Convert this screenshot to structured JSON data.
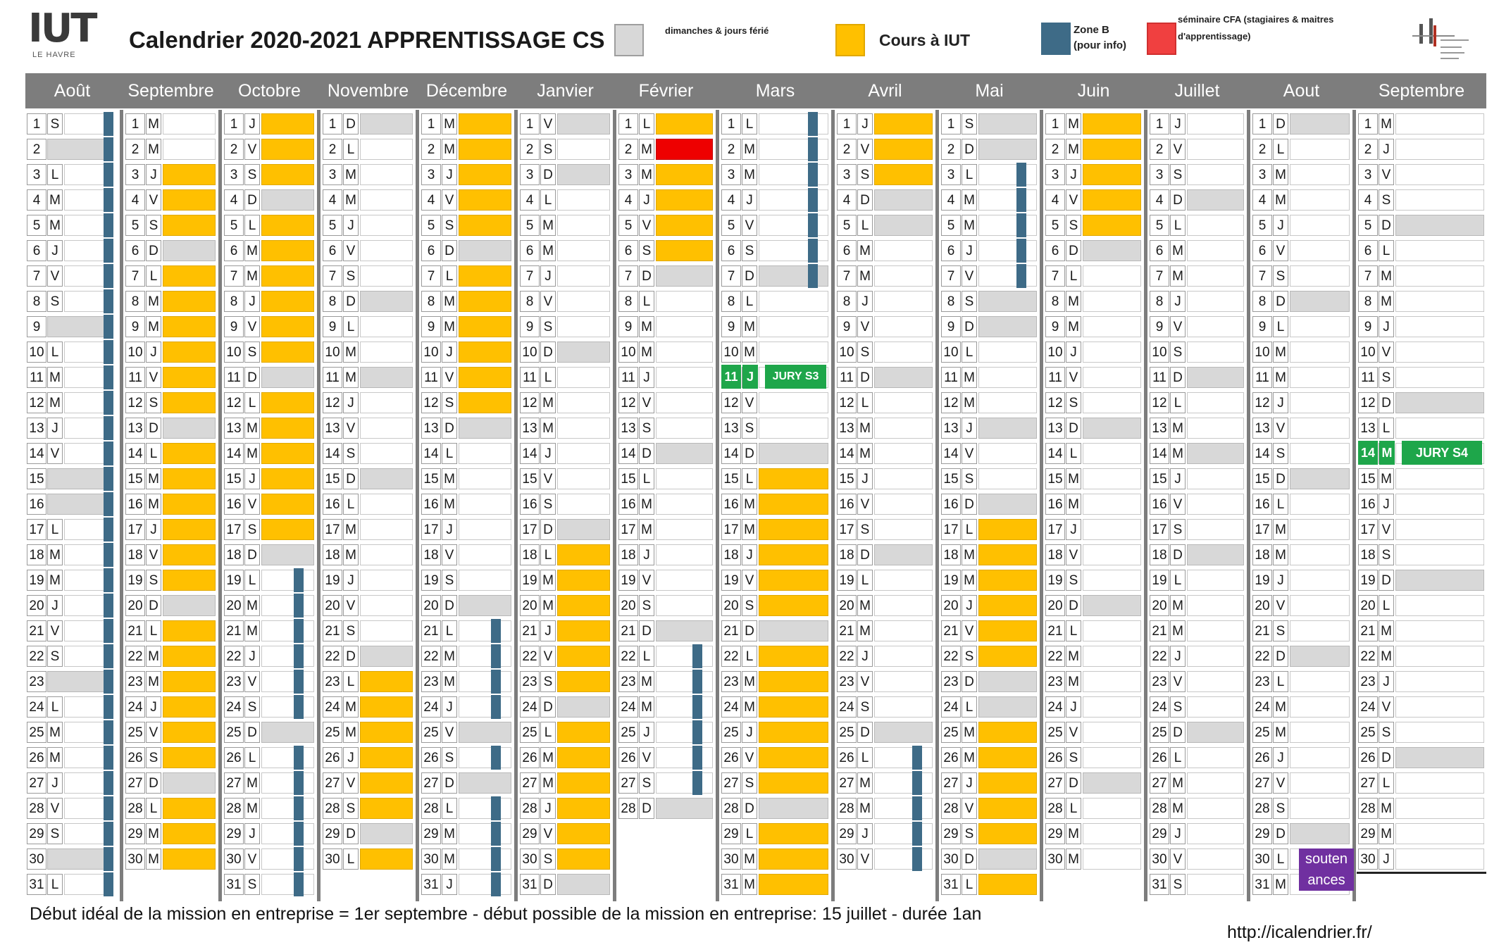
{
  "logo": {
    "text": "IUT",
    "sub": "LE HAVRE"
  },
  "title": "Calendrier 2020-2021 APPRENTISSAGE CS",
  "legend": [
    {
      "key": "gray",
      "color": "#d8d8d8",
      "text": "dimanches & jours férié"
    },
    {
      "key": "orange",
      "color": "#ffc000",
      "text": "Cours à IUT"
    },
    {
      "key": "zoneb",
      "color": "#3e6b87",
      "text": "Zone B (pour info)"
    },
    {
      "key": "red",
      "color": "#f04040",
      "text": "séminaire CFA (stagiaires & maitres d'apprentissage)"
    }
  ],
  "months": [
    {
      "name": "Août",
      "days": "SDLMMJVSDLMMJVSDLMMJVSDLMMJVSDL",
      "gray": [
        2,
        9,
        15,
        16,
        23,
        30
      ],
      "orange": [],
      "red": [],
      "zoneb": "all",
      "white": []
    },
    {
      "name": "Septembre",
      "days": "MMJVSDLMMJVSDLMMJVSDLMMJVSDLMM",
      "gray": [
        6,
        13,
        20,
        27
      ],
      "orange": [
        3,
        4,
        5,
        7,
        8,
        9,
        10,
        11,
        12,
        14,
        15,
        16,
        17,
        18,
        19,
        21,
        22,
        23,
        24,
        25,
        26,
        28,
        29,
        30
      ],
      "red": [],
      "zoneb": [],
      "white": [
        1,
        2
      ]
    },
    {
      "name": "Octobre",
      "days": "JVSDLMMJVSDLMMJVSDLMMJVSDLMMJVS",
      "gray": [
        4,
        11,
        18,
        25
      ],
      "orange": [
        1,
        2,
        3,
        5,
        6,
        7,
        8,
        9,
        10,
        12,
        13,
        14,
        15,
        16,
        17
      ],
      "red": [],
      "zoneb": [
        19,
        20,
        21,
        22,
        23,
        24,
        26,
        27,
        28,
        29,
        30,
        31
      ],
      "white": [
        19,
        20,
        21,
        22,
        23,
        24,
        26,
        27,
        28,
        29,
        30,
        31
      ]
    },
    {
      "name": "Novembre",
      "days": "DLMMJVSDLMMJVSDLMMJVSDLMMJVSDL",
      "gray": [
        1,
        8,
        11,
        15,
        22,
        29
      ],
      "orange": [
        23,
        24,
        25,
        26,
        27,
        28,
        30
      ],
      "red": [],
      "zoneb": [],
      "white": [
        2,
        3,
        4,
        5,
        6,
        7,
        9,
        10,
        12,
        13,
        14,
        16,
        17,
        18,
        19,
        20,
        21
      ]
    },
    {
      "name": "Décembre",
      "days": "MMJVSDLMMJVSDLMMJVSDLMMJVSDLMMJ",
      "gray": [
        6,
        13,
        20,
        25,
        27
      ],
      "orange": [
        1,
        2,
        3,
        4,
        5,
        7,
        8,
        9,
        10,
        11,
        12
      ],
      "red": [],
      "zoneb": [
        21,
        22,
        23,
        24,
        26,
        28,
        29,
        30,
        31
      ],
      "white": [
        14,
        15,
        16,
        17,
        18,
        19,
        21,
        22,
        23,
        24,
        26,
        28,
        29,
        30,
        31
      ]
    },
    {
      "name": "Janvier",
      "days": "VSDLMMJVSDLMMJVSDLMMJVSDLMMJVSD",
      "gray": [
        1,
        3,
        10,
        17,
        24,
        31
      ],
      "orange": [
        18,
        19,
        20,
        21,
        22,
        23,
        25,
        26,
        27,
        28,
        29,
        30
      ],
      "red": [],
      "zoneb": [],
      "white": [
        2,
        4,
        5,
        6,
        7,
        8,
        9,
        11,
        12,
        13,
        14,
        15,
        16
      ]
    },
    {
      "name": "Février",
      "days": "LMMJVSDLMMJVSDLMMJVSDLMMJVSD",
      "gray": [
        7,
        14,
        21,
        28
      ],
      "orange": [
        1,
        3,
        4,
        5,
        6
      ],
      "red": [
        2
      ],
      "zoneb": [
        22,
        23,
        24,
        25,
        26,
        27
      ],
      "white": [
        8,
        9,
        10,
        11,
        12,
        13,
        15,
        16,
        17,
        18,
        19,
        20,
        22,
        23,
        24,
        25,
        26,
        27
      ]
    },
    {
      "name": "Mars",
      "days": "LMMJVSDLMMJVSDLMMJVSDLMMJVSDLMM",
      "gray": [
        7,
        14,
        21,
        28
      ],
      "orange": [
        15,
        16,
        17,
        18,
        19,
        20,
        22,
        23,
        24,
        25,
        26,
        27,
        29,
        30,
        31
      ],
      "red": [],
      "zoneb": [
        1,
        2,
        3,
        4,
        5,
        6,
        7
      ],
      "white": [
        1,
        2,
        3,
        4,
        5,
        6,
        8,
        9,
        10,
        12,
        13
      ]
    },
    {
      "name": "Avril",
      "days": "JVSDLMMJVSDLMMJVSDLMMJVSDLMMJV",
      "gray": [
        4,
        5,
        11,
        18,
        25
      ],
      "orange": [
        1,
        2,
        3
      ],
      "red": [],
      "zoneb": [
        26,
        27,
        28,
        29,
        30
      ],
      "white": [
        6,
        7,
        8,
        9,
        10,
        12,
        13,
        14,
        15,
        16,
        17,
        19,
        20,
        21,
        22,
        23,
        24,
        26,
        27,
        28,
        29,
        30
      ]
    },
    {
      "name": "Mai",
      "days": "SDLMMJVSDLMMJVSDLMMJVSDLMMJVSDL",
      "gray": [
        1,
        2,
        8,
        9,
        13,
        16,
        23,
        24,
        30
      ],
      "orange": [
        17,
        18,
        19,
        20,
        21,
        22,
        25,
        26,
        27,
        28,
        29,
        31
      ],
      "red": [],
      "zoneb": [
        3,
        4,
        5,
        6,
        7
      ],
      "white": [
        3,
        4,
        5,
        6,
        7,
        10,
        11,
        12,
        14,
        15
      ]
    },
    {
      "name": "Juin",
      "days": "MMJVSDLMMJVSDLMMJVSDLMMJVSDLMM",
      "gray": [
        6,
        13,
        20,
        27
      ],
      "orange": [
        1,
        2,
        3,
        4,
        5
      ],
      "red": [],
      "zoneb": [],
      "white": [
        7,
        8,
        9,
        10,
        11,
        12,
        14,
        15,
        16,
        17,
        18,
        19,
        21,
        22,
        23,
        24,
        25,
        26,
        28,
        29,
        30
      ]
    },
    {
      "name": "Juillet",
      "days": "JVSDLMMJVSDLMMJVSDLMMJVSDLMMJVS",
      "gray": [
        4,
        11,
        14,
        18,
        25
      ],
      "orange": [],
      "red": [],
      "zoneb": [],
      "white": [
        1,
        2,
        3,
        5,
        6,
        7,
        8,
        9,
        10,
        12,
        13,
        15,
        16,
        17,
        19,
        20,
        21,
        22,
        23,
        24,
        26,
        27,
        28,
        29,
        30,
        31
      ]
    },
    {
      "name": "Aout",
      "days": "DLMMJVSDLMMJVSDLMMJVSDLMMJVSDLM",
      "gray": [
        1,
        8,
        15,
        22,
        29
      ],
      "orange": [],
      "red": [],
      "zoneb": [],
      "white": [
        2,
        3,
        4,
        5,
        6,
        7,
        9,
        10,
        11,
        12,
        13,
        14,
        16,
        17,
        18,
        19,
        20,
        21,
        23,
        24,
        25,
        26,
        27,
        28
      ]
    },
    {
      "name": "Septembre",
      "days": "MJVSDLMMJVSDLMMJVSDLMMJVSDLMMJ",
      "gray": [
        5,
        12,
        19,
        26
      ],
      "orange": [],
      "red": [],
      "zoneb": [],
      "white": [
        1,
        2,
        3,
        4,
        6,
        7,
        8,
        9,
        10,
        11,
        13,
        15,
        16,
        17,
        18,
        20,
        21,
        22,
        23,
        24,
        25,
        27,
        28,
        29,
        30
      ]
    }
  ],
  "events": {
    "jury_s3": {
      "month": 7,
      "day": 11,
      "label": "JURY S3"
    },
    "jury_s4": {
      "month": 13,
      "day": 14,
      "label": "JURY S4"
    },
    "soutenances": {
      "month": 12,
      "label1": "souten",
      "label2": "ances"
    }
  },
  "footer": "Début idéal de la mission en entreprise = 1er septembre - début possible de la mission en entreprise: 15 juillet - durée 1an",
  "url": "http://icalendrier.fr/"
}
